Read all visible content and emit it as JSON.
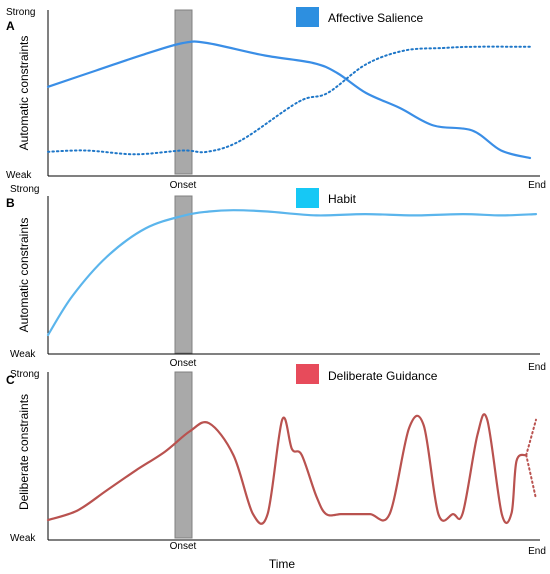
{
  "chart_data": {
    "type": "line",
    "x_axis_label": "Time",
    "x_ticks": [
      "Onset",
      "End"
    ],
    "panels": [
      {
        "letter": "A",
        "ylabel": "Automatic constraints",
        "y_top": "Strong",
        "y_bottom": "Weak",
        "legend": {
          "label": "Affective Salience",
          "color": "#2d8fe0"
        },
        "series": [
          {
            "style": "solid",
            "color": "#3a8ee6",
            "x": [
              0,
              0.1,
              0.2,
              0.28,
              0.33,
              0.45,
              0.55,
              0.6,
              0.66,
              0.73,
              0.8,
              0.88,
              0.94,
              1
            ],
            "y": [
              0.57,
              0.7,
              0.83,
              0.92,
              0.92,
              0.82,
              0.76,
              0.68,
              0.52,
              0.4,
              0.26,
              0.22,
              0.06,
              0.0
            ]
          },
          {
            "style": "dotted",
            "color": "#1f77c8",
            "x": [
              0,
              0.08,
              0.18,
              0.28,
              0.33,
              0.4,
              0.52,
              0.58,
              0.66,
              0.74,
              0.82,
              0.88,
              1
            ],
            "y": [
              0.05,
              0.06,
              0.03,
              0.06,
              0.05,
              0.14,
              0.45,
              0.52,
              0.75,
              0.86,
              0.88,
              0.89,
              0.89
            ]
          }
        ]
      },
      {
        "letter": "B",
        "ylabel": "Automatic constraints",
        "y_top": "Strong",
        "y_bottom": "Weak",
        "legend": {
          "label": "Habit",
          "color": "#16c8f5"
        },
        "series": [
          {
            "style": "solid",
            "color": "#5bb5ec",
            "x": [
              0,
              0.05,
              0.12,
              0.2,
              0.28,
              0.33,
              0.38,
              0.45,
              0.55,
              0.65,
              0.75,
              0.85,
              0.93,
              1
            ],
            "y": [
              0.0,
              0.3,
              0.6,
              0.82,
              0.92,
              0.95,
              0.96,
              0.95,
              0.92,
              0.93,
              0.92,
              0.93,
              0.92,
              0.93
            ]
          }
        ]
      },
      {
        "letter": "C",
        "ylabel": "Deliberate constraints",
        "y_top": "Strong",
        "y_bottom": "Weak",
        "legend": {
          "label": "Deliberate Guidance",
          "color": "#e74b5b"
        },
        "series": [
          {
            "style": "solid",
            "color": "#b9524f",
            "x": [
              0,
              0.06,
              0.12,
              0.18,
              0.24,
              0.29,
              0.33,
              0.38,
              0.42,
              0.45,
              0.48,
              0.5,
              0.52,
              0.55,
              0.57,
              0.6,
              0.62,
              0.66,
              0.7,
              0.74,
              0.77,
              0.8,
              0.83,
              0.85,
              0.88,
              0.9,
              0.93,
              0.95,
              0.96,
              0.98
            ],
            "y": [
              0.0,
              0.08,
              0.25,
              0.42,
              0.58,
              0.75,
              0.82,
              0.55,
              0.05,
              0.05,
              0.85,
              0.6,
              0.55,
              0.2,
              0.05,
              0.05,
              0.05,
              0.05,
              0.05,
              0.78,
              0.8,
              0.05,
              0.05,
              0.06,
              0.72,
              0.85,
              0.05,
              0.06,
              0.5,
              0.55
            ]
          },
          {
            "style": "dotted",
            "color": "#b9524f",
            "x": [
              0.98,
              1.0
            ],
            "y": [
              0.55,
              0.85
            ]
          },
          {
            "style": "dotted",
            "color": "#b9524f",
            "x": [
              0.98,
              1.0
            ],
            "y": [
              0.55,
              0.18
            ]
          }
        ]
      }
    ]
  }
}
